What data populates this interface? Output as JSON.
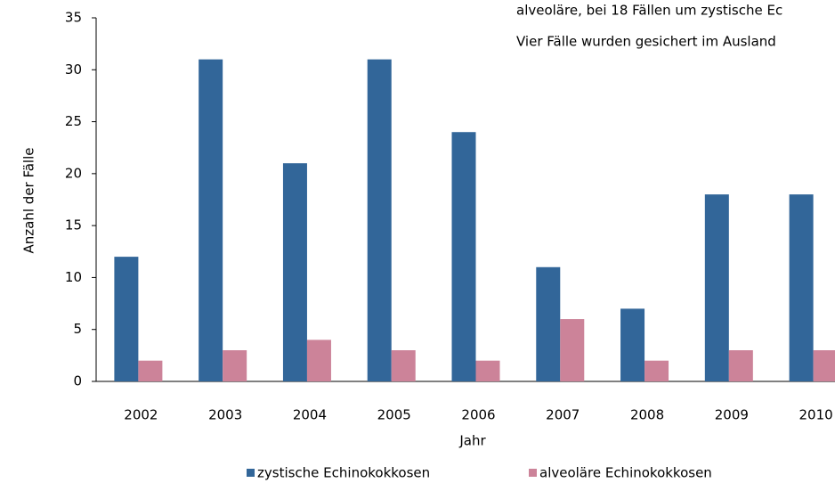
{
  "chart_data": {
    "type": "bar",
    "annotations": [
      "alveoläre, bei 18 Fällen um zystische Ec",
      "Vier Fälle wurden gesichert im Ausland"
    ],
    "x_label": "Jahr",
    "y_label": "Anzahl der Fälle",
    "categories": [
      "2002",
      "2003",
      "2004",
      "2005",
      "2006",
      "2007",
      "2008",
      "2009",
      "2010"
    ],
    "series": [
      {
        "name": "zystische Echinokokkosen",
        "color": "#326699",
        "values": [
          12,
          31,
          21,
          31,
          24,
          11,
          7,
          18,
          18
        ]
      },
      {
        "name": "alveoläre Echinokokkosen",
        "color": "#cc8399",
        "values": [
          2,
          3,
          4,
          3,
          2,
          6,
          2,
          3,
          3
        ]
      }
    ],
    "ylim": [
      0,
      35
    ],
    "yticks": [
      0,
      5,
      10,
      15,
      20,
      25,
      30,
      35
    ],
    "grid": false,
    "legend": "bottom"
  }
}
